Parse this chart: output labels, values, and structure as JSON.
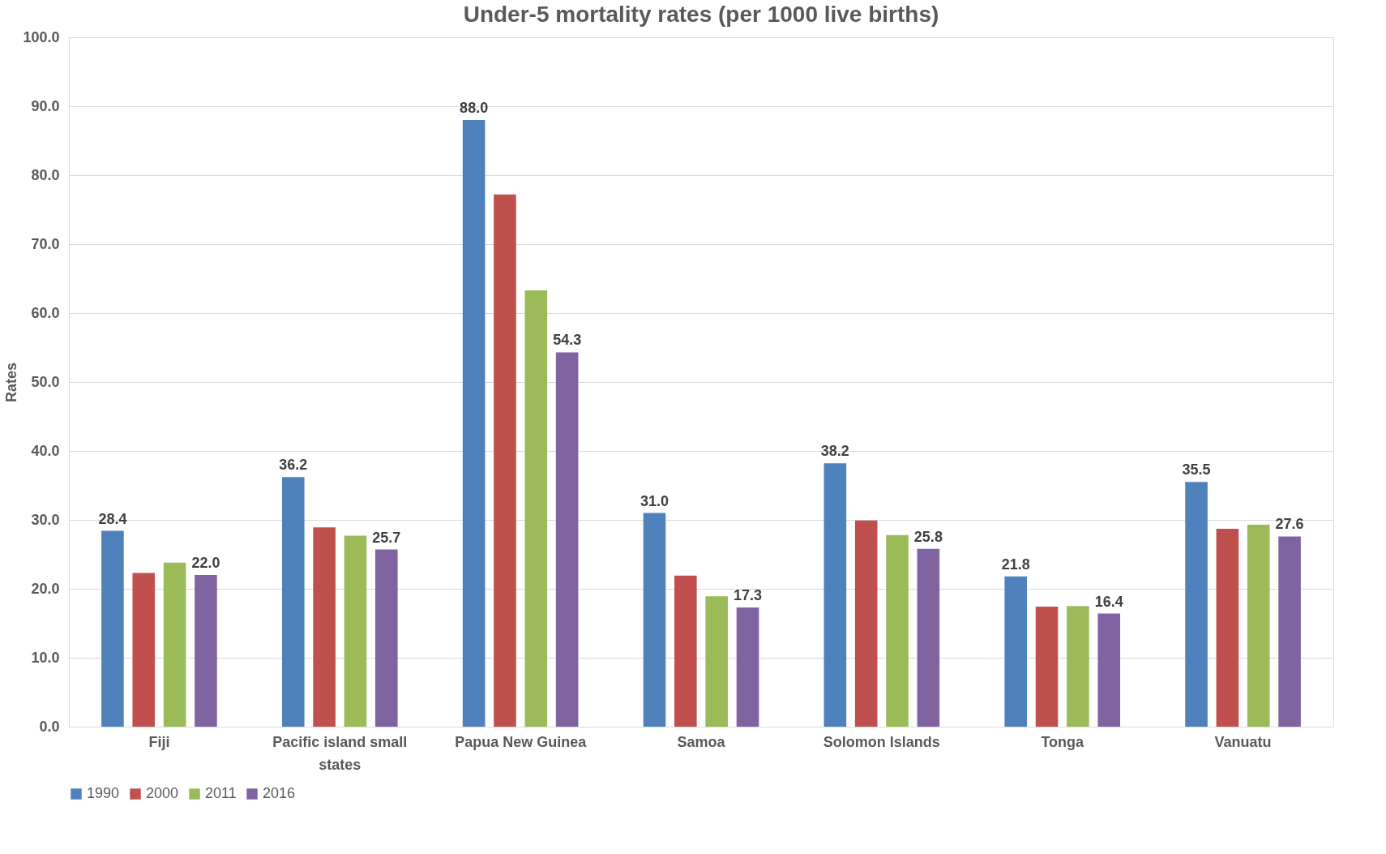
{
  "chart_data": {
    "type": "bar",
    "title": "Under-5 mortality rates (per 1000 live births)",
    "ylabel": "Rates",
    "categories": [
      "Fiji",
      "Pacific island small states",
      "Papua New Guinea",
      "Samoa",
      "Solomon Islands",
      "Tonga",
      "Vanuatu"
    ],
    "series": [
      {
        "name": "1990",
        "color": "#4f81bd",
        "values": [
          28.4,
          36.2,
          88.0,
          31.0,
          38.2,
          21.8,
          35.5
        ],
        "value_labels": [
          "28.4",
          "36.2",
          "88.0",
          "31.0",
          "38.2",
          "21.8",
          "35.5"
        ]
      },
      {
        "name": "2000",
        "color": "#c0504d",
        "values": [
          22.3,
          28.9,
          77.2,
          21.9,
          29.9,
          17.4,
          28.7
        ]
      },
      {
        "name": "2011",
        "color": "#9bbb59",
        "values": [
          23.8,
          27.7,
          63.3,
          18.9,
          27.8,
          17.5,
          29.3
        ]
      },
      {
        "name": "2016",
        "color": "#8064a2",
        "values": [
          22.0,
          25.7,
          54.3,
          17.3,
          25.8,
          16.4,
          27.6
        ],
        "value_labels": [
          "22.0",
          "25.7",
          "54.3",
          "17.3",
          "25.8",
          "16.4",
          "27.6"
        ]
      }
    ],
    "ylim": [
      0,
      100
    ],
    "yticks": [
      {
        "value": 0,
        "label": "0.0"
      },
      {
        "value": 10,
        "label": "10.0"
      },
      {
        "value": 20,
        "label": "20.0"
      },
      {
        "value": 30,
        "label": "30.0"
      },
      {
        "value": 40,
        "label": "40.0"
      },
      {
        "value": 50,
        "label": "50.0"
      },
      {
        "value": 60,
        "label": "60.0"
      },
      {
        "value": 70,
        "label": "70.0"
      },
      {
        "value": 80,
        "label": "80.0"
      },
      {
        "value": 90,
        "label": "90.0"
      },
      {
        "value": 100,
        "label": "100.0"
      }
    ],
    "grid": "y",
    "legend": "bottom"
  }
}
